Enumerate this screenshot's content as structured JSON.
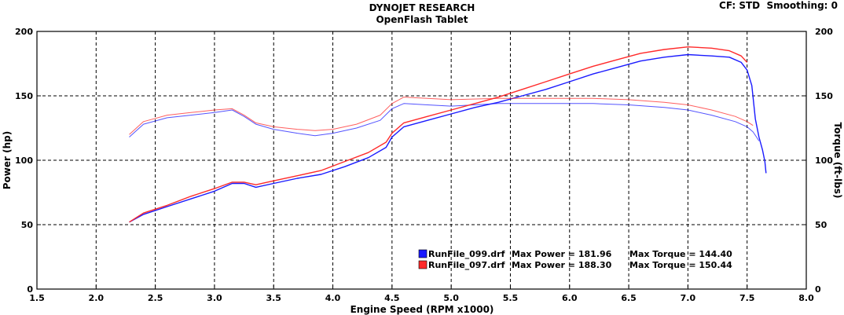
{
  "header": {
    "title": "DYNOJET RESEARCH",
    "subtitle": "OpenFlash Tablet",
    "settings": "CF: STD  Smoothing: 0"
  },
  "legend": {
    "entries": [
      {
        "name": "RunFile_099.drf",
        "power_text": "Max Power = 181.96",
        "torque_text": "Max Torque = 144.40",
        "color": "#1a1aff"
      },
      {
        "name": "RunFile_097.drf",
        "power_text": "Max Power = 188.30",
        "torque_text": "Max Torque = 150.44",
        "color": "#ff2a2a"
      }
    ]
  },
  "chart_data": {
    "type": "line",
    "xlabel": "Engine Speed (RPM x1000)",
    "ylabel": "Power (hp)",
    "y2label": "Torque (ft-lbs)",
    "xlim": [
      1.5,
      8.0
    ],
    "ylim": [
      0,
      200
    ],
    "y2lim": [
      0,
      200
    ],
    "x_ticks": [
      "1.5",
      "2.0",
      "2.5",
      "3.0",
      "3.5",
      "4.0",
      "4.5",
      "5.0",
      "5.5",
      "6.0",
      "6.5",
      "7.0",
      "7.5",
      "8.0"
    ],
    "y_ticks": [
      "0",
      "50",
      "100",
      "150",
      "200"
    ],
    "y2_ticks": [
      "0",
      "50",
      "100",
      "150",
      "200"
    ],
    "grid": true,
    "series": [
      {
        "name": "RunFile_099.drf",
        "quantity": "power",
        "color": "#1a1aff",
        "points": [
          [
            2.28,
            52
          ],
          [
            2.4,
            58
          ],
          [
            2.6,
            64
          ],
          [
            2.8,
            70
          ],
          [
            3.0,
            76
          ],
          [
            3.15,
            82
          ],
          [
            3.25,
            82
          ],
          [
            3.35,
            79
          ],
          [
            3.5,
            82
          ],
          [
            3.7,
            86
          ],
          [
            3.9,
            89
          ],
          [
            4.1,
            95
          ],
          [
            4.3,
            102
          ],
          [
            4.45,
            110
          ],
          [
            4.5,
            118
          ],
          [
            4.6,
            126
          ],
          [
            4.8,
            131
          ],
          [
            5.0,
            136
          ],
          [
            5.2,
            141
          ],
          [
            5.4,
            145
          ],
          [
            5.6,
            150
          ],
          [
            5.8,
            155
          ],
          [
            6.0,
            161
          ],
          [
            6.2,
            167
          ],
          [
            6.4,
            172
          ],
          [
            6.6,
            177
          ],
          [
            6.8,
            180
          ],
          [
            7.0,
            182
          ],
          [
            7.2,
            181
          ],
          [
            7.35,
            180
          ],
          [
            7.45,
            176
          ],
          [
            7.5,
            170
          ],
          [
            7.54,
            158
          ],
          [
            7.57,
            132
          ],
          [
            7.6,
            118
          ],
          [
            7.63,
            108
          ],
          [
            7.65,
            99
          ],
          [
            7.66,
            90
          ]
        ]
      },
      {
        "name": "RunFile_099.drf",
        "quantity": "torque",
        "color": "#1a1aff",
        "points": [
          [
            2.28,
            118
          ],
          [
            2.4,
            128
          ],
          [
            2.6,
            133
          ],
          [
            2.8,
            135
          ],
          [
            3.0,
            137
          ],
          [
            3.15,
            139
          ],
          [
            3.25,
            134
          ],
          [
            3.35,
            128
          ],
          [
            3.5,
            124
          ],
          [
            3.7,
            121
          ],
          [
            3.85,
            119
          ],
          [
            4.0,
            121
          ],
          [
            4.2,
            125
          ],
          [
            4.4,
            131
          ],
          [
            4.5,
            140
          ],
          [
            4.6,
            144
          ],
          [
            4.8,
            143
          ],
          [
            5.0,
            142
          ],
          [
            5.4,
            144
          ],
          [
            5.8,
            144
          ],
          [
            6.2,
            144
          ],
          [
            6.5,
            143
          ],
          [
            6.8,
            141
          ],
          [
            7.0,
            139
          ],
          [
            7.2,
            135
          ],
          [
            7.4,
            130
          ],
          [
            7.5,
            126
          ],
          [
            7.55,
            122
          ],
          [
            7.58,
            118
          ],
          [
            7.6,
            115
          ]
        ]
      },
      {
        "name": "RunFile_097.drf",
        "quantity": "power",
        "color": "#ff2a2a",
        "points": [
          [
            2.28,
            52
          ],
          [
            2.4,
            59
          ],
          [
            2.6,
            65
          ],
          [
            2.8,
            72
          ],
          [
            3.0,
            78
          ],
          [
            3.15,
            83
          ],
          [
            3.25,
            83
          ],
          [
            3.35,
            81
          ],
          [
            3.5,
            84
          ],
          [
            3.7,
            88
          ],
          [
            3.9,
            92
          ],
          [
            4.1,
            99
          ],
          [
            4.3,
            106
          ],
          [
            4.45,
            114
          ],
          [
            4.5,
            121
          ],
          [
            4.6,
            129
          ],
          [
            4.8,
            134
          ],
          [
            5.0,
            139
          ],
          [
            5.2,
            144
          ],
          [
            5.4,
            149
          ],
          [
            5.6,
            155
          ],
          [
            5.8,
            161
          ],
          [
            6.0,
            167
          ],
          [
            6.2,
            173
          ],
          [
            6.4,
            178
          ],
          [
            6.6,
            183
          ],
          [
            6.8,
            186
          ],
          [
            7.0,
            188
          ],
          [
            7.2,
            187
          ],
          [
            7.35,
            185
          ],
          [
            7.45,
            181
          ],
          [
            7.5,
            176
          ]
        ]
      },
      {
        "name": "RunFile_097.drf",
        "quantity": "torque",
        "color": "#ff2a2a",
        "points": [
          [
            2.28,
            120
          ],
          [
            2.4,
            130
          ],
          [
            2.6,
            135
          ],
          [
            2.8,
            137
          ],
          [
            3.0,
            139
          ],
          [
            3.15,
            140
          ],
          [
            3.25,
            135
          ],
          [
            3.35,
            129
          ],
          [
            3.5,
            126
          ],
          [
            3.7,
            124
          ],
          [
            3.85,
            123
          ],
          [
            4.0,
            124
          ],
          [
            4.2,
            128
          ],
          [
            4.4,
            135
          ],
          [
            4.5,
            144
          ],
          [
            4.6,
            149
          ],
          [
            4.8,
            148
          ],
          [
            5.0,
            147
          ],
          [
            5.4,
            148
          ],
          [
            5.8,
            148
          ],
          [
            6.2,
            148
          ],
          [
            6.5,
            147
          ],
          [
            6.8,
            145
          ],
          [
            7.0,
            143
          ],
          [
            7.2,
            139
          ],
          [
            7.4,
            134
          ],
          [
            7.5,
            130
          ],
          [
            7.55,
            127
          ]
        ]
      }
    ]
  }
}
